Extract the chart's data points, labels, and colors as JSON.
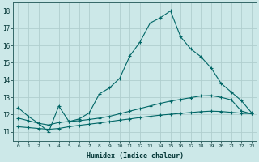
{
  "xlabel": "Humidex (Indice chaleur)",
  "ylabel": "",
  "background_color": "#cce8e8",
  "grid_color": "#b0cece",
  "line_color": "#006666",
  "xlim": [
    -0.5,
    23.5
  ],
  "ylim": [
    10.5,
    18.5
  ],
  "yticks": [
    11,
    12,
    13,
    14,
    15,
    16,
    17,
    18
  ],
  "xticks": [
    0,
    1,
    2,
    3,
    4,
    5,
    6,
    7,
    8,
    9,
    10,
    11,
    12,
    13,
    14,
    15,
    16,
    17,
    18,
    19,
    20,
    21,
    22,
    23
  ],
  "xtick_labels": [
    "0",
    "1",
    "2",
    "3",
    "4",
    "5",
    "6",
    "7",
    "8",
    "9",
    "10",
    "11",
    "12",
    "13",
    "14",
    "15",
    "16",
    "17",
    "18",
    "19",
    "20",
    "21",
    "22",
    "23"
  ],
  "series1_x": [
    0,
    1,
    2,
    3,
    4,
    5,
    6,
    7,
    8,
    9,
    10,
    11,
    12,
    13,
    14,
    15,
    16,
    17,
    18,
    19,
    20,
    21,
    22,
    23
  ],
  "series1_y": [
    12.4,
    11.9,
    11.5,
    11.0,
    12.5,
    11.6,
    11.75,
    12.1,
    13.2,
    13.55,
    14.1,
    15.4,
    16.2,
    17.3,
    17.6,
    18.0,
    16.5,
    15.8,
    15.35,
    14.7,
    13.8,
    13.3,
    12.8,
    12.1
  ],
  "series2_x": [
    0,
    1,
    2,
    3,
    4,
    5,
    6,
    7,
    8,
    9,
    10,
    11,
    12,
    13,
    14,
    15,
    16,
    17,
    18,
    19,
    20,
    21,
    22,
    23
  ],
  "series2_y": [
    11.8,
    11.65,
    11.5,
    11.4,
    11.55,
    11.6,
    11.65,
    11.72,
    11.8,
    11.9,
    12.05,
    12.2,
    12.35,
    12.5,
    12.65,
    12.78,
    12.88,
    12.98,
    13.08,
    13.1,
    13.0,
    12.85,
    12.2,
    12.05
  ],
  "series3_x": [
    0,
    1,
    2,
    3,
    4,
    5,
    6,
    7,
    8,
    9,
    10,
    11,
    12,
    13,
    14,
    15,
    16,
    17,
    18,
    19,
    20,
    21,
    22,
    23
  ],
  "series3_y": [
    11.3,
    11.25,
    11.2,
    11.15,
    11.2,
    11.3,
    11.38,
    11.45,
    11.52,
    11.6,
    11.68,
    11.75,
    11.83,
    11.9,
    11.97,
    12.02,
    12.07,
    12.12,
    12.17,
    12.2,
    12.18,
    12.13,
    12.08,
    12.05
  ]
}
